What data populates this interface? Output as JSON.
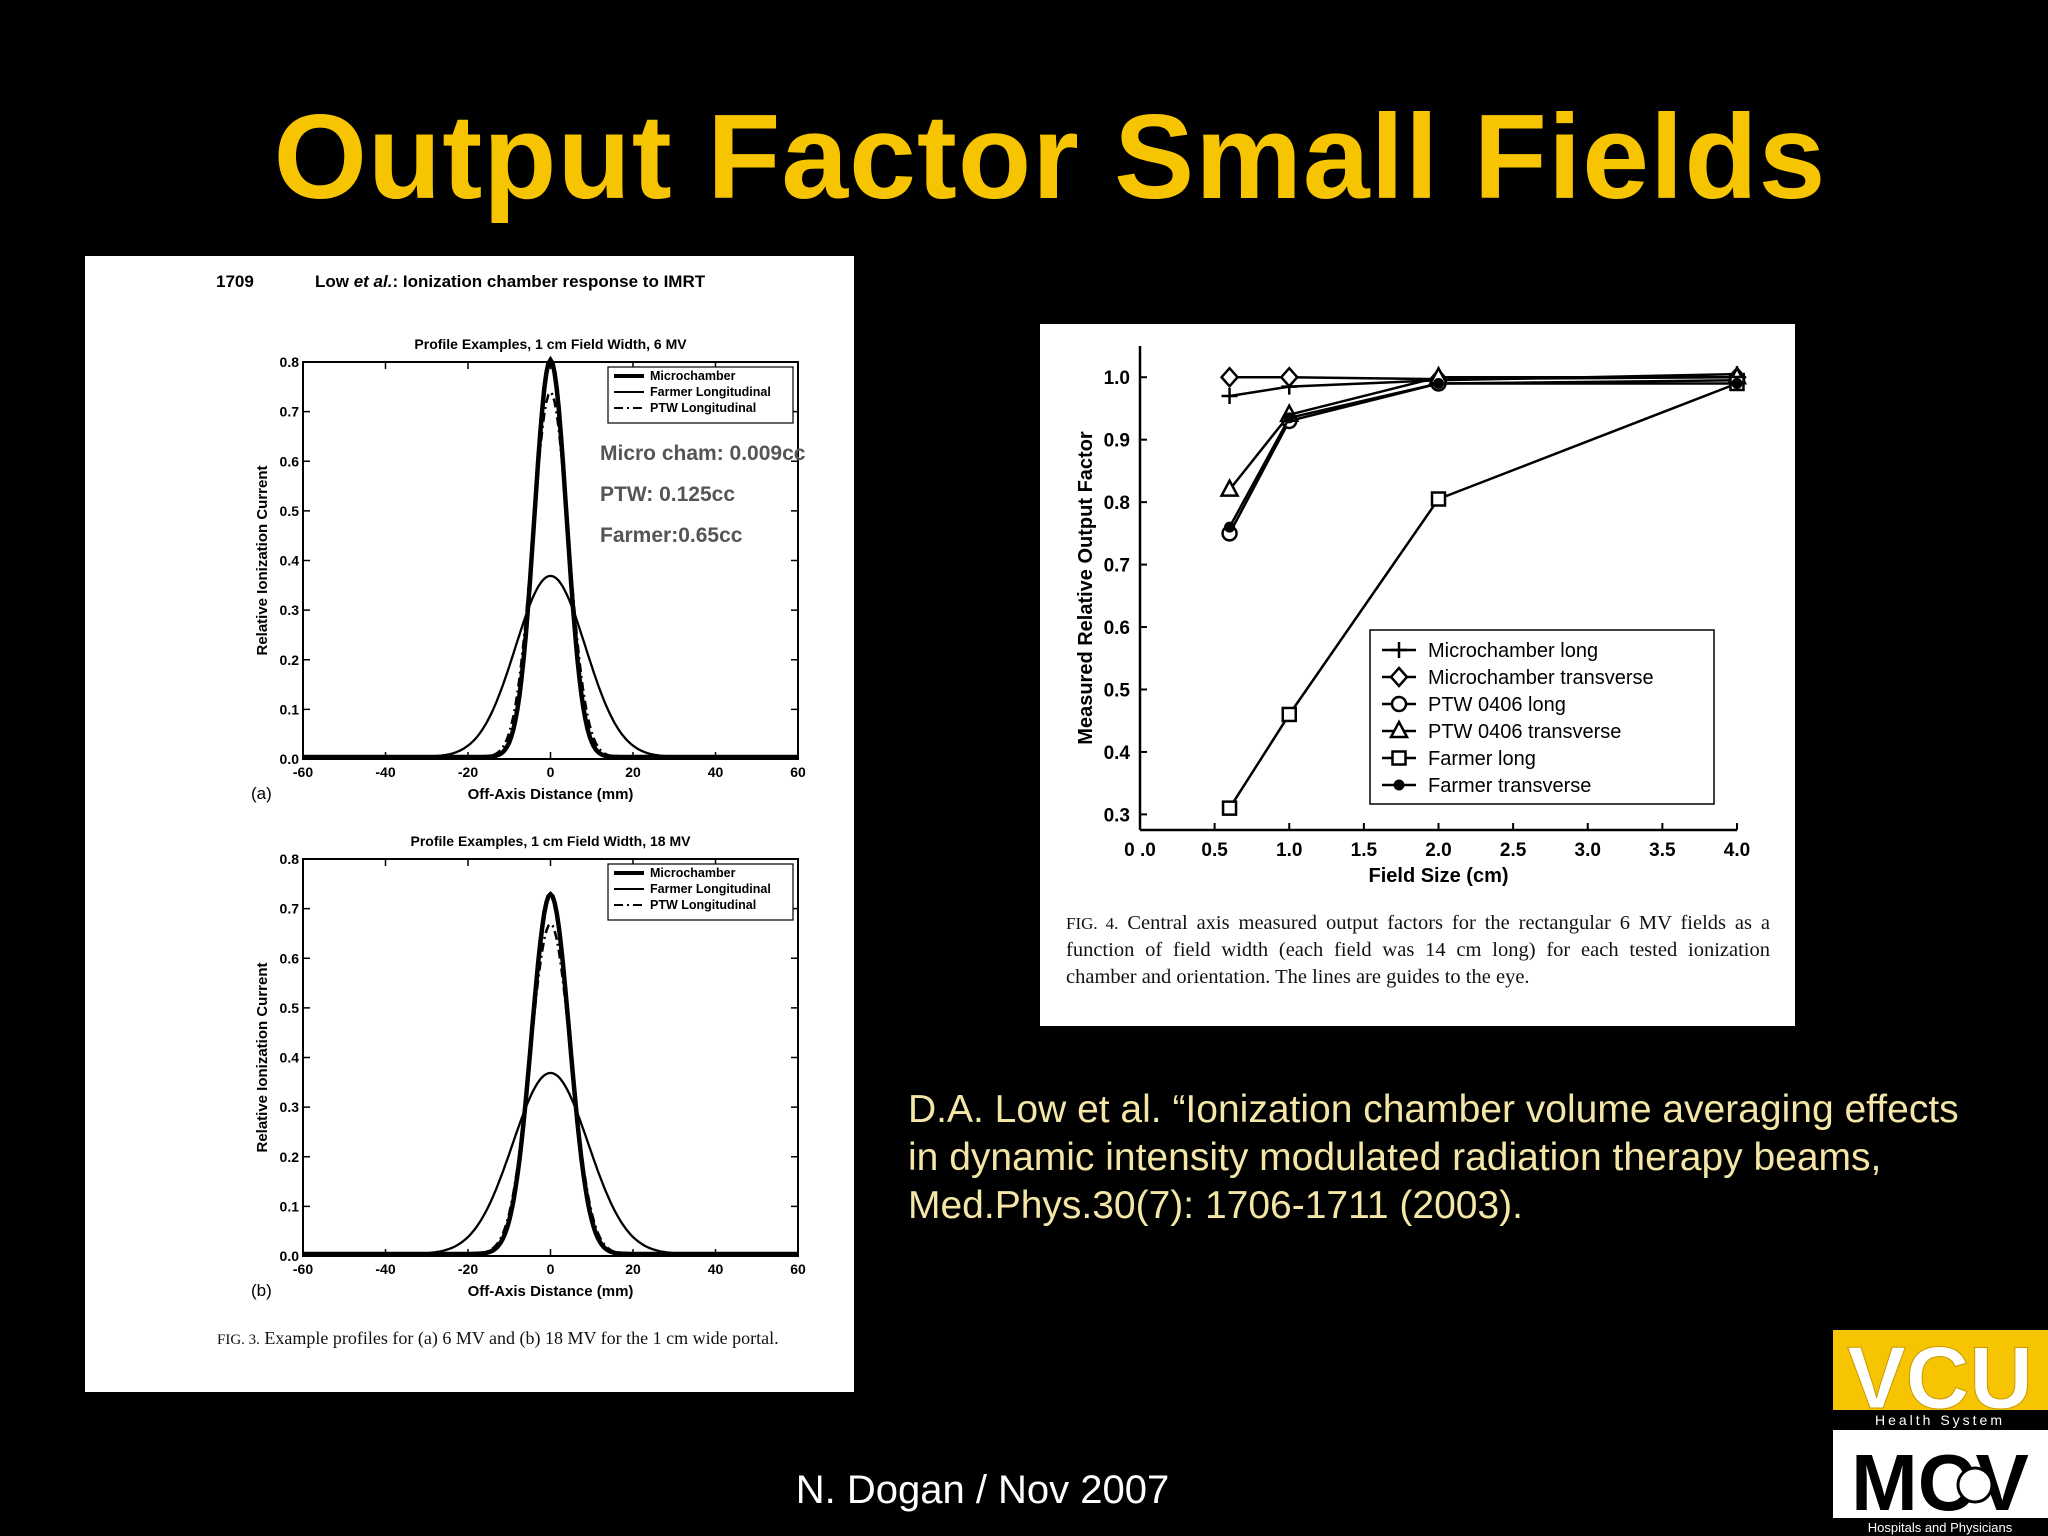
{
  "slide": {
    "title": "Output Factor Small Fields",
    "citation": "D.A. Low et al. “Ionization chamber volume averaging effects in dynamic intensity modulated radiation therapy beams, Med.Phys.30(7): 1706-1711 (2003).",
    "footer": "N. Dogan / Nov 2007"
  },
  "colors": {
    "title": "#f6c400",
    "citation": "#f4e6a6",
    "background": "#000000"
  },
  "left_figure": {
    "page_number": "1709",
    "running_head_pre": "Low ",
    "running_head_em": "et al.",
    "running_head_post": ": Ionization chamber response to IMRT",
    "annotations": [
      "Micro cham: 0.009cc",
      "PTW: 0.125cc",
      "Farmer:0.65cc"
    ],
    "caption_lead": "Fig. 3.",
    "caption_text": "Example profiles for (a) 6 MV and (b) 18 MV for the 1 cm wide portal."
  },
  "right_figure": {
    "caption_lead": "Fig. 4.",
    "caption_text": "Central axis measured output factors for the rectangular 6 MV fields as a function of field width (each field was 14 cm long) for each tested ionization chamber and orientation. The lines are guides to the eye."
  },
  "logo": {
    "top_text": "VCU",
    "band_text": "Health System",
    "bottom_text": "MCV",
    "bottom_band_text": "Hospitals and Physicians"
  },
  "chart_data": [
    {
      "type": "line",
      "panel_label": "(a)",
      "title": "Profile Examples, 1 cm Field Width, 6 MV",
      "xlabel": "Off-Axis Distance (mm)",
      "ylabel": "Relative Ionization Current",
      "xlim": [
        -60,
        60
      ],
      "ylim": [
        0,
        0.8
      ],
      "xticks": [
        "-60",
        "-40",
        "-20",
        "0",
        "20",
        "40",
        "60"
      ],
      "yticks": [
        "0.0",
        "0.1",
        "0.2",
        "0.3",
        "0.4",
        "0.5",
        "0.6",
        "0.7",
        "0.8"
      ],
      "legend_position": "top-right",
      "series": [
        {
          "name": "Microchamber",
          "style": "thick",
          "peak": 0.8,
          "sigma": 3.9
        },
        {
          "name": "Farmer Longitudinal",
          "style": "solid",
          "peak": 0.365,
          "sigma": 8.5
        },
        {
          "name": "PTW Longitudinal",
          "style": "dashdot",
          "peak": 0.735,
          "sigma": 4.3
        }
      ]
    },
    {
      "type": "line",
      "panel_label": "(b)",
      "title": "Profile Examples, 1 cm Field Width, 18 MV",
      "xlabel": "Off-Axis Distance (mm)",
      "ylabel": "Relative Ionization Current",
      "xlim": [
        -60,
        60
      ],
      "ylim": [
        0,
        0.8
      ],
      "xticks": [
        "-60",
        "-40",
        "-20",
        "0",
        "20",
        "40",
        "60"
      ],
      "yticks": [
        "0.0",
        "0.1",
        "0.2",
        "0.3",
        "0.4",
        "0.5",
        "0.6",
        "0.7",
        "0.8"
      ],
      "legend_position": "top-right",
      "series": [
        {
          "name": "Microchamber",
          "style": "thick",
          "peak": 0.725,
          "sigma": 4.6
        },
        {
          "name": "Farmer Longitudinal",
          "style": "solid",
          "peak": 0.365,
          "sigma": 9.2
        },
        {
          "name": "PTW Longitudinal",
          "style": "dashdot",
          "peak": 0.665,
          "sigma": 4.9
        }
      ]
    },
    {
      "type": "line",
      "xlabel": "Field Size (cm)",
      "ylabel": "Measured Relative Output Factor",
      "xlim": [
        0,
        4
      ],
      "ylim": [
        0.275,
        1.05
      ],
      "xticks": [
        "0 .0",
        "0.5",
        "1.0",
        "1.5",
        "2.0",
        "2.5",
        "3.0",
        "3.5",
        "4.0"
      ],
      "yticks": [
        "0.3",
        "0.4",
        "0.5",
        "0.6",
        "0.7",
        "0.8",
        "0.9",
        "1.0"
      ],
      "legend_position": "bottom-right",
      "x": [
        0.6,
        1.0,
        2.0,
        4.0
      ],
      "series": [
        {
          "name": "Microchamber long",
          "marker": "plus",
          "values": [
            0.97,
            0.985,
            0.995,
            1.005
          ]
        },
        {
          "name": "Microchamber transverse",
          "marker": "diamond",
          "values": [
            1.0,
            1.0,
            0.997,
            1.0
          ]
        },
        {
          "name": "PTW 0406 long",
          "marker": "circle",
          "values": [
            0.75,
            0.93,
            0.99,
            0.995
          ]
        },
        {
          "name": "PTW 0406 transverse",
          "marker": "triangle",
          "values": [
            0.82,
            0.94,
            1.0,
            1.0
          ]
        },
        {
          "name": "Farmer long",
          "marker": "square",
          "values": [
            0.31,
            0.46,
            0.805,
            0.99
          ]
        },
        {
          "name": "Farmer transverse",
          "marker": "dot",
          "values": [
            0.76,
            0.935,
            0.99,
            0.99
          ]
        }
      ]
    }
  ]
}
